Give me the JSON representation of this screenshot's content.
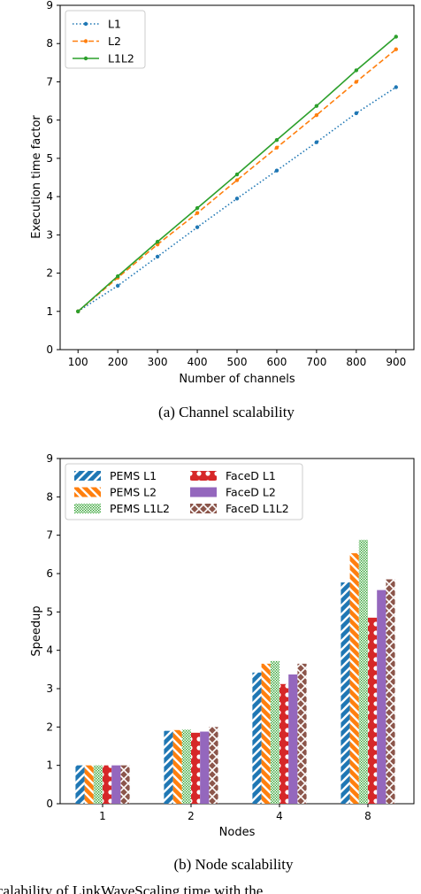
{
  "charts": [
    {
      "type": "line",
      "xlabel": "Number of channels",
      "ylabel": "Execution time factor",
      "caption": "(a) Channel scalability",
      "x": [
        100,
        200,
        300,
        400,
        500,
        600,
        700,
        800,
        900
      ],
      "xlim": [
        55,
        945
      ],
      "ylim": [
        0,
        9
      ],
      "yticks": [
        0,
        1,
        2,
        3,
        4,
        5,
        6,
        7,
        8,
        9
      ],
      "grid": false,
      "legend_position": "top-left",
      "series": [
        {
          "name": "L1",
          "color": "#1f77b4",
          "style": "dotted",
          "values": [
            1.0,
            1.67,
            2.43,
            3.2,
            3.95,
            4.68,
            5.42,
            6.18,
            6.86
          ]
        },
        {
          "name": "L2",
          "color": "#ff7f0e",
          "style": "dashed",
          "values": [
            1.0,
            1.88,
            2.75,
            3.57,
            4.43,
            5.28,
            6.13,
            7.0,
            7.85
          ]
        },
        {
          "name": "L1L2",
          "color": "#2ca02c",
          "style": "solid",
          "values": [
            1.0,
            1.92,
            2.82,
            3.7,
            4.58,
            5.48,
            6.37,
            7.3,
            8.18
          ]
        }
      ]
    },
    {
      "type": "bar",
      "xlabel": "Nodes",
      "ylabel": "Speedup",
      "caption": "(b) Node scalability",
      "categories": [
        "1",
        "2",
        "4",
        "8"
      ],
      "ylim": [
        0,
        9
      ],
      "yticks": [
        0,
        1,
        2,
        3,
        4,
        5,
        6,
        7,
        8,
        9
      ],
      "grid": false,
      "legend_position": "top-left",
      "series": [
        {
          "name": "PEMS L1",
          "color": "#1f77b4",
          "pattern": "slash",
          "values": [
            1.0,
            1.9,
            3.42,
            5.77
          ]
        },
        {
          "name": "PEMS L2",
          "color": "#ff7f0e",
          "pattern": "backslash",
          "values": [
            1.0,
            1.92,
            3.65,
            6.53
          ]
        },
        {
          "name": "PEMS L1L2",
          "color": "#2ca02c",
          "pattern": "dots",
          "values": [
            1.0,
            1.93,
            3.72,
            6.88
          ]
        },
        {
          "name": "FaceD L1",
          "color": "#d62728",
          "pattern": "circles",
          "values": [
            1.0,
            1.85,
            3.12,
            4.85
          ]
        },
        {
          "name": "FaceD L2",
          "color": "#9467bd",
          "pattern": "solid",
          "values": [
            1.0,
            1.88,
            3.37,
            5.57
          ]
        },
        {
          "name": "FaceD L1L2",
          "color": "#8c564b",
          "pattern": "x",
          "values": [
            1.0,
            2.0,
            3.65,
            5.85
          ]
        }
      ]
    }
  ],
  "truncated_text": "calability of LinkWaveScaling time with the"
}
